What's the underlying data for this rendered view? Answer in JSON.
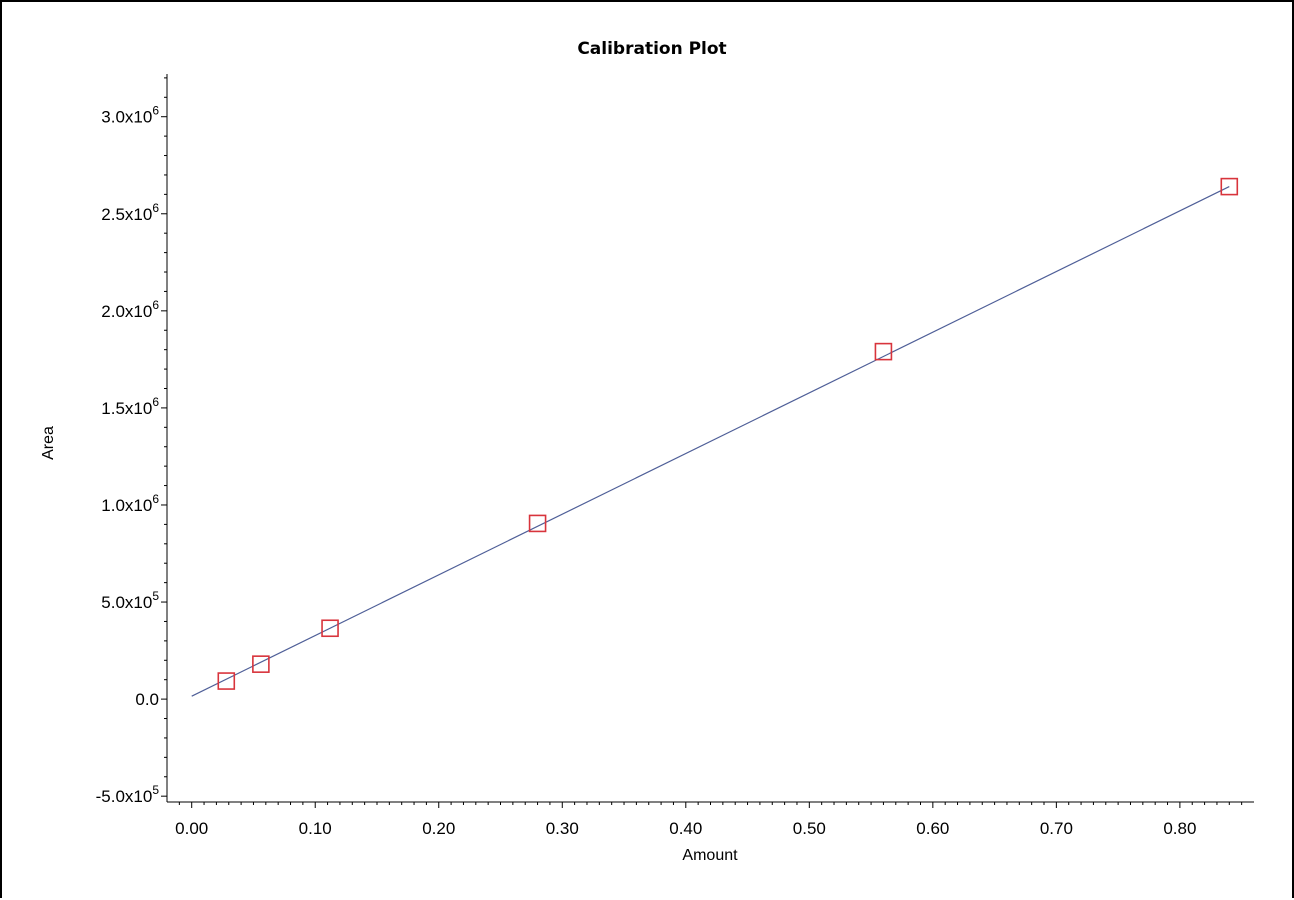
{
  "chart_data": {
    "type": "scatter",
    "title": "Calibration Plot",
    "xlabel": "Amount",
    "ylabel": "Area",
    "xlim": [
      -0.02,
      0.86
    ],
    "ylim": [
      -530000,
      3220000
    ],
    "x_ticks": [
      "0.00",
      "0.10",
      "0.20",
      "0.30",
      "0.40",
      "0.50",
      "0.60",
      "0.70",
      "0.80"
    ],
    "x_tick_values": [
      0.0,
      0.1,
      0.2,
      0.3,
      0.4,
      0.5,
      0.6,
      0.7,
      0.8
    ],
    "y_ticks": [
      {
        "value": -500000,
        "mantissa": "-5.0x10",
        "exponent": "5"
      },
      {
        "value": 0,
        "mantissa": "0.0",
        "exponent": ""
      },
      {
        "value": 500000,
        "mantissa": "5.0x10",
        "exponent": "5"
      },
      {
        "value": 1000000,
        "mantissa": "1.0x10",
        "exponent": "6"
      },
      {
        "value": 1500000,
        "mantissa": "1.5x10",
        "exponent": "6"
      },
      {
        "value": 2000000,
        "mantissa": "2.0x10",
        "exponent": "6"
      },
      {
        "value": 2500000,
        "mantissa": "2.5x10",
        "exponent": "6"
      },
      {
        "value": 3000000,
        "mantissa": "3.0x10",
        "exponent": "6"
      }
    ],
    "series": [
      {
        "name": "",
        "x": [
          0.028,
          0.056,
          0.112,
          0.28,
          0.56,
          0.84
        ],
        "y": [
          93000,
          180000,
          365000,
          905000,
          1790000,
          2640000
        ],
        "marker": "square",
        "color": "#d8343c"
      }
    ],
    "fit_line": {
      "x": [
        0.0,
        0.84
      ],
      "y": [
        15000,
        2640000
      ],
      "color": "#4f5f98"
    },
    "grid": false,
    "legend": "none"
  }
}
